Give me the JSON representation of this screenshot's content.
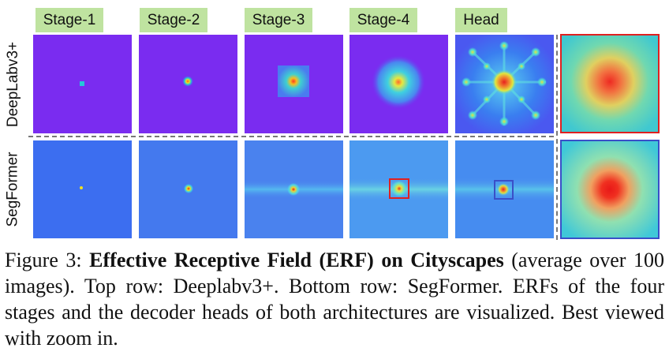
{
  "figure": {
    "stage_headers": [
      "Stage-1",
      "Stage-2",
      "Stage-3",
      "Stage-4",
      "Head"
    ],
    "row_labels": [
      "DeepLabv3+",
      "SegFormer"
    ],
    "colors": {
      "header_bg": "#bfe3a0",
      "deeplab_bg": "#7a2cf0",
      "segformer_bg": "#3c6ef0",
      "zoom_red": "#e02020",
      "zoom_blue": "#3a4fc8",
      "divider": "#777777"
    }
  },
  "caption": {
    "prefix": "Figure 3: ",
    "bold": "Effective Receptive Field (ERF) on Cityscapes",
    "rest": " (average over 100 images). Top row: Deeplabv3+. Bottom row: SegFormer. ERFs of the four stages and the decoder heads of both architectures are visualized. Best viewed with zoom in."
  }
}
